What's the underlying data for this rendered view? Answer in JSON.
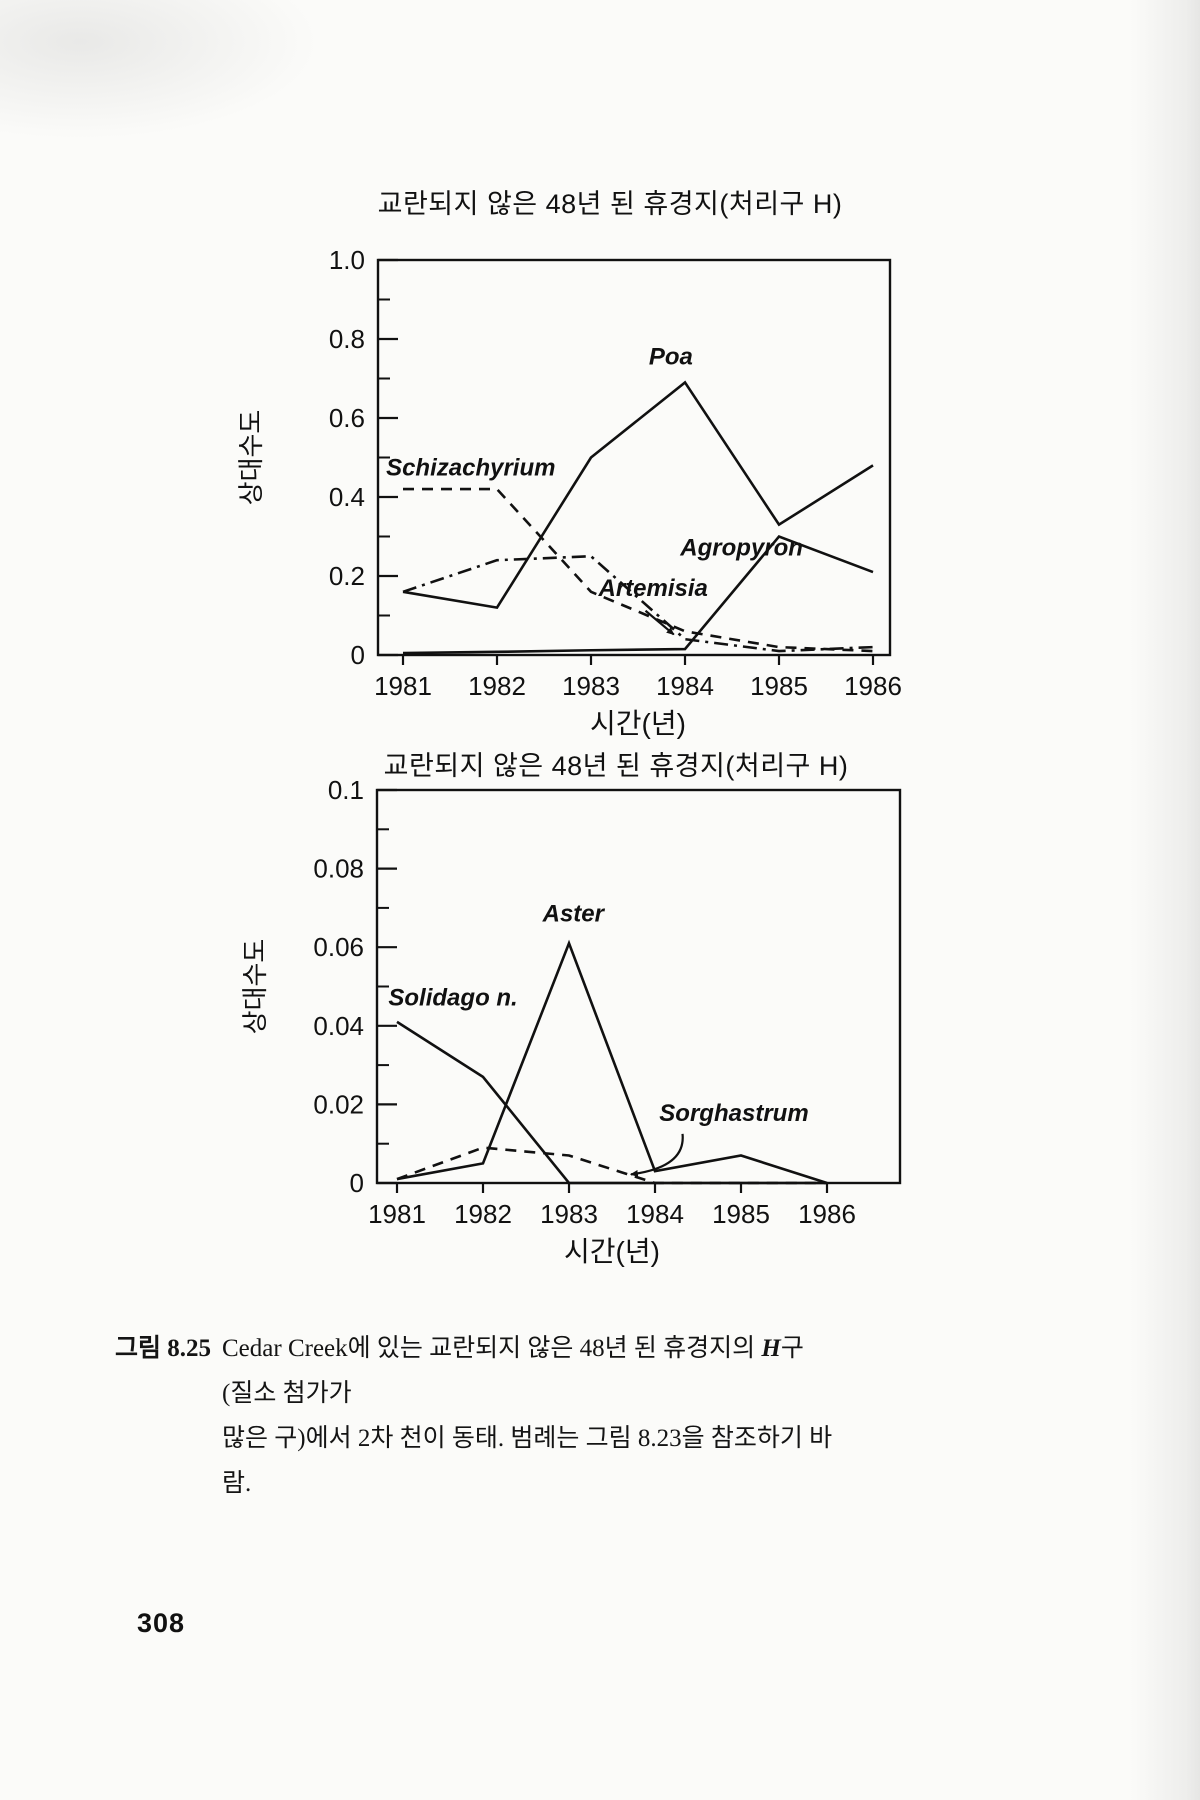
{
  "page": {
    "number": "308"
  },
  "caption": {
    "label": "그림 8.25",
    "line1_pre": "Cedar Creek에 있는 교란되지 않은 48년 된 휴경지의 ",
    "line1_italic": "H",
    "line1_post": "구(질소 첨가가",
    "line2": "많은 구)에서 2차 천이 동태. 범례는 그림 8.23을 참조하기 바람."
  },
  "chart_data": [
    {
      "type": "line",
      "title": "교란되지 않은 48년 된 휴경지(처리구 H)",
      "xlabel": "시간(년)",
      "ylabel": "상대수도",
      "x": [
        1981,
        1982,
        1983,
        1984,
        1985,
        1986
      ],
      "ylim": [
        0,
        1.0
      ],
      "grid": false,
      "legend_position": "inline-labels",
      "ytick_values": [
        0,
        0.2,
        0.4,
        0.6,
        0.8,
        1.0
      ],
      "ytick_labels": [
        "0",
        "0.2",
        "0.4",
        "0.6",
        "0.8",
        "1.0"
      ],
      "yminor_values": [
        0.1,
        0.3,
        0.5,
        0.7,
        0.9
      ],
      "series": [
        {
          "name": "Poa",
          "line": "solid",
          "values": [
            0.16,
            0.12,
            0.5,
            0.69,
            0.33,
            0.48
          ],
          "label_at": [
            1983.85,
            0.735
          ],
          "label_anchor": "middle"
        },
        {
          "name": "Schizachyrium",
          "line": "dashed",
          "values": [
            0.42,
            0.42,
            0.16,
            0.06,
            0.02,
            0.01
          ],
          "label_at": [
            1980.82,
            0.455
          ],
          "label_anchor": "start"
        },
        {
          "name": "Artemisia",
          "line": "dashdot",
          "values": [
            0.16,
            0.24,
            0.25,
            0.04,
            0.01,
            0.02
          ],
          "label_at": [
            1983.08,
            0.15
          ],
          "label_anchor": "start",
          "arrow": {
            "from": [
              1983.58,
              0.112
            ],
            "to": [
              1983.88,
              0.052
            ]
          }
        },
        {
          "name": "Agropyron",
          "line": "solid",
          "values": [
            0.005,
            0.008,
            0.012,
            0.015,
            0.3,
            0.21
          ],
          "label_at": [
            1983.95,
            0.252
          ],
          "label_anchor": "start"
        }
      ]
    },
    {
      "type": "line",
      "title": "교란되지 않은 48년 된 휴경지(처리구 H)",
      "xlabel": "시간(년)",
      "ylabel": "상대수도",
      "x": [
        1981,
        1982,
        1983,
        1984,
        1985,
        1986
      ],
      "ylim": [
        0,
        0.1
      ],
      "grid": false,
      "legend_position": "inline-labels",
      "ytick_values": [
        0,
        0.02,
        0.04,
        0.06,
        0.08,
        0.1
      ],
      "ytick_labels": [
        "0",
        "0.02",
        "0.04",
        "0.06",
        "0.08",
        "0.1"
      ],
      "yminor_values": [
        0.01,
        0.03,
        0.05,
        0.07,
        0.09
      ],
      "series": [
        {
          "name": "Solidago n.",
          "line": "solid",
          "values": [
            0.041,
            0.027,
            0.0,
            0.0,
            0.0,
            0.0
          ],
          "label_at": [
            1980.9,
            0.0452
          ],
          "label_anchor": "start"
        },
        {
          "name": "Aster",
          "line": "solid",
          "values": [
            0.001,
            0.005,
            0.061,
            0.003,
            0.007,
            0.0
          ],
          "label_at": [
            1983.05,
            0.0665
          ],
          "label_anchor": "middle"
        },
        {
          "name": "Sorghastrum",
          "line": "dashed",
          "values": [
            0.001,
            0.009,
            0.007,
            0.0,
            0.0,
            0.0
          ],
          "label_at": [
            1984.05,
            0.0158
          ],
          "label_anchor": "start",
          "arrow": {
            "from": [
              1984.32,
              0.0125
            ],
            "ctrl": [
              1984.36,
              0.004
            ],
            "to": [
              1983.72,
              0.0022
            ]
          }
        }
      ]
    }
  ]
}
